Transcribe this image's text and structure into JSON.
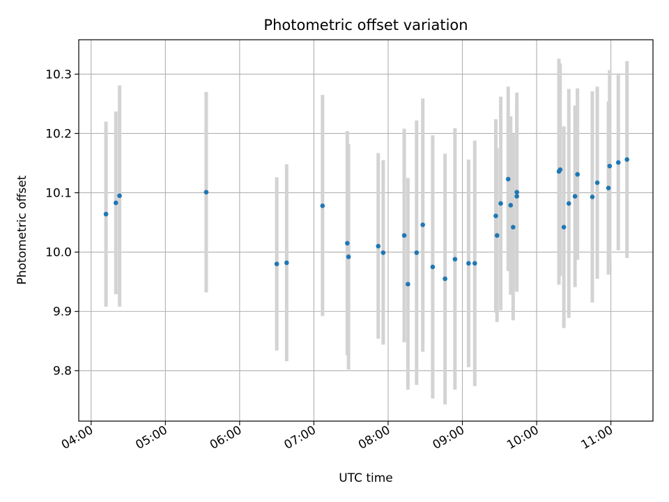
{
  "chart_data": {
    "type": "scatter",
    "title": "Photometric offset variation",
    "xlabel": "UTC time",
    "ylabel": "Photometric offset",
    "x_axis_kind": "time",
    "xlim": [
      "03:50",
      "11:34"
    ],
    "ylim": [
      9.715,
      10.358
    ],
    "x_ticks": [
      "04:00",
      "05:00",
      "06:00",
      "07:00",
      "08:00",
      "09:00",
      "10:00",
      "11:00"
    ],
    "y_ticks": [
      "9.8",
      "9.9",
      "10.0",
      "10.1",
      "10.2",
      "10.3"
    ],
    "grid": true,
    "legend": "none",
    "point_color": "#1f77b4",
    "errorbar_color": "#d3d3d3",
    "points": [
      {
        "t": "04:12",
        "y": 10.064,
        "lo": 9.908,
        "hi": 10.22
      },
      {
        "t": "04:20",
        "y": 10.083,
        "lo": 9.929,
        "hi": 10.237
      },
      {
        "t": "04:23",
        "y": 10.095,
        "lo": 9.908,
        "hi": 10.281
      },
      {
        "t": "05:33",
        "y": 10.101,
        "lo": 9.932,
        "hi": 10.27
      },
      {
        "t": "06:30",
        "y": 9.98,
        "lo": 9.834,
        "hi": 10.126
      },
      {
        "t": "06:38",
        "y": 9.982,
        "lo": 9.816,
        "hi": 10.148
      },
      {
        "t": "07:07",
        "y": 10.078,
        "lo": 9.892,
        "hi": 10.265
      },
      {
        "t": "07:27",
        "y": 10.015,
        "lo": 9.826,
        "hi": 10.204
      },
      {
        "t": "07:28",
        "y": 9.992,
        "lo": 9.802,
        "hi": 10.182
      },
      {
        "t": "07:52",
        "y": 10.01,
        "lo": 9.854,
        "hi": 10.167
      },
      {
        "t": "07:56",
        "y": 9.999,
        "lo": 9.844,
        "hi": 10.155
      },
      {
        "t": "08:13",
        "y": 10.028,
        "lo": 9.848,
        "hi": 10.208
      },
      {
        "t": "08:16",
        "y": 9.946,
        "lo": 9.768,
        "hi": 10.125
      },
      {
        "t": "08:23",
        "y": 9.999,
        "lo": 9.776,
        "hi": 10.222
      },
      {
        "t": "08:28",
        "y": 10.046,
        "lo": 9.832,
        "hi": 10.259
      },
      {
        "t": "08:36",
        "y": 9.975,
        "lo": 9.753,
        "hi": 10.197
      },
      {
        "t": "08:46",
        "y": 9.955,
        "lo": 9.743,
        "hi": 10.166
      },
      {
        "t": "08:54",
        "y": 9.988,
        "lo": 9.768,
        "hi": 10.209
      },
      {
        "t": "09:05",
        "y": 9.981,
        "lo": 9.806,
        "hi": 10.156
      },
      {
        "t": "09:10",
        "y": 9.981,
        "lo": 9.774,
        "hi": 10.188
      },
      {
        "t": "09:27",
        "y": 10.061,
        "lo": 9.898,
        "hi": 10.224
      },
      {
        "t": "09:28",
        "y": 10.028,
        "lo": 9.882,
        "hi": 10.175
      },
      {
        "t": "09:31",
        "y": 10.082,
        "lo": 9.902,
        "hi": 10.262
      },
      {
        "t": "09:37",
        "y": 10.123,
        "lo": 9.968,
        "hi": 10.279
      },
      {
        "t": "09:39",
        "y": 10.079,
        "lo": 9.928,
        "hi": 10.229
      },
      {
        "t": "09:41",
        "y": 10.042,
        "lo": 9.885,
        "hi": 10.199
      },
      {
        "t": "09:44",
        "y": 10.101,
        "lo": 9.933,
        "hi": 10.269
      },
      {
        "t": "09:44",
        "y": 10.094,
        "lo": 9.939,
        "hi": 10.249
      },
      {
        "t": "10:18",
        "y": 10.136,
        "lo": 9.945,
        "hi": 10.326
      },
      {
        "t": "10:19",
        "y": 10.139,
        "lo": 9.96,
        "hi": 10.318
      },
      {
        "t": "10:22",
        "y": 10.042,
        "lo": 9.872,
        "hi": 10.212
      },
      {
        "t": "10:26",
        "y": 10.082,
        "lo": 9.889,
        "hi": 10.275
      },
      {
        "t": "10:31",
        "y": 10.094,
        "lo": 9.941,
        "hi": 10.247
      },
      {
        "t": "10:33",
        "y": 10.131,
        "lo": 9.987,
        "hi": 10.276
      },
      {
        "t": "10:45",
        "y": 10.093,
        "lo": 9.915,
        "hi": 10.271
      },
      {
        "t": "10:49",
        "y": 10.117,
        "lo": 9.955,
        "hi": 10.279
      },
      {
        "t": "10:58",
        "y": 10.108,
        "lo": 9.962,
        "hi": 10.254
      },
      {
        "t": "10:59",
        "y": 10.145,
        "lo": 9.983,
        "hi": 10.307
      },
      {
        "t": "11:06",
        "y": 10.151,
        "lo": 10.003,
        "hi": 10.299
      },
      {
        "t": "11:13",
        "y": 10.156,
        "lo": 9.99,
        "hi": 10.322
      }
    ]
  }
}
